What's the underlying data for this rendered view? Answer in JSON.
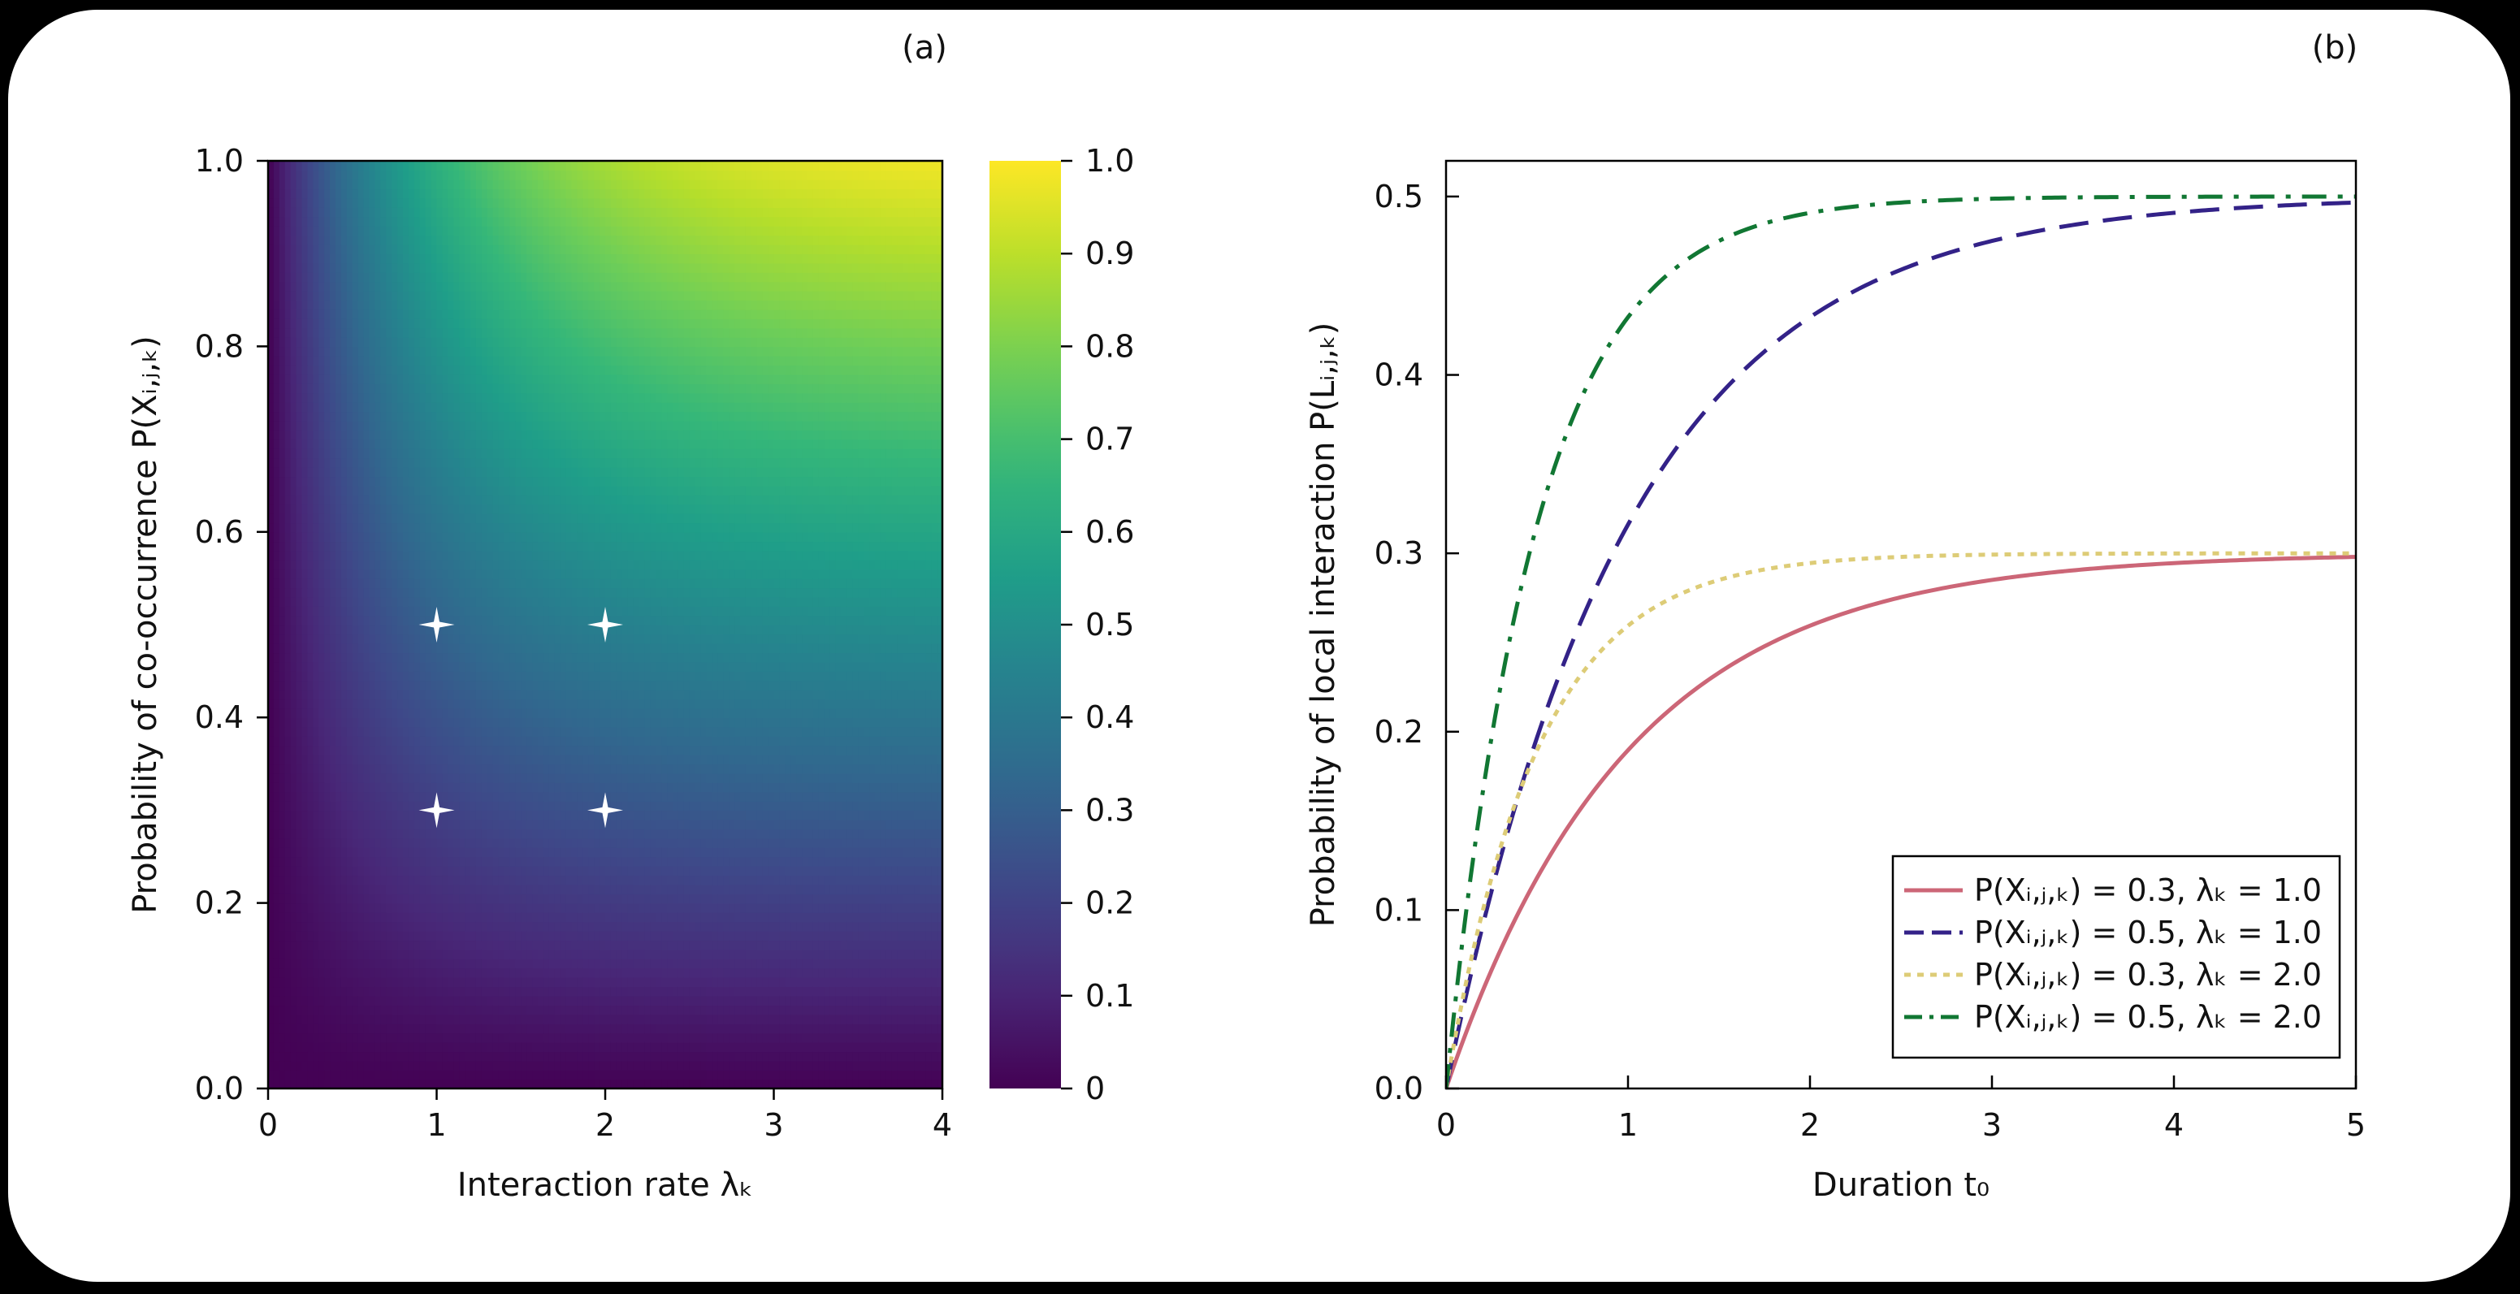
{
  "chart_data": [
    {
      "type": "heatmap",
      "panel_label": "(a)",
      "xlabel": "Interaction rate λₖ",
      "ylabel": "Probability of co-occurrence P(Xᵢ,ⱼ,ₖ)",
      "x_ticks": [
        "0",
        "1",
        "2",
        "3",
        "4"
      ],
      "y_ticks": [
        "0.0",
        "0.2",
        "0.4",
        "0.6",
        "0.8",
        "1.0"
      ],
      "xlim": [
        0,
        4
      ],
      "ylim": [
        0,
        1
      ],
      "z_function": "P(X) * (1 - exp(-lambda))",
      "colormap": "viridis",
      "colorbar": {
        "range": [
          0,
          1
        ],
        "ticks": [
          "0",
          "0.1",
          "0.2",
          "0.3",
          "0.4",
          "0.5",
          "0.6",
          "0.7",
          "0.8",
          "0.9",
          "1.0"
        ]
      },
      "markers": [
        {
          "x": 1,
          "y": 0.5
        },
        {
          "x": 2,
          "y": 0.5
        },
        {
          "x": 1,
          "y": 0.3
        },
        {
          "x": 2,
          "y": 0.3
        }
      ],
      "marker_color": "#ffffff"
    },
    {
      "type": "line",
      "panel_label": "(b)",
      "xlabel": "Duration t₀",
      "ylabel": "Probability of local interaction P(Lᵢ,ⱼ,ₖ)",
      "x_ticks": [
        "0",
        "1",
        "2",
        "3",
        "4",
        "5"
      ],
      "y_ticks": [
        "0.0",
        "0.1",
        "0.2",
        "0.3",
        "0.4",
        "0.5"
      ],
      "xlim": [
        0,
        5
      ],
      "ylim": [
        0,
        0.52
      ],
      "legend_position": "bottom-right",
      "series": [
        {
          "name": "P(Xᵢ,ⱼ,ₖ) = 0.3, λₖ = 1.0",
          "p": 0.3,
          "lambda": 1.0,
          "color": "#cc6677",
          "dash": "solid"
        },
        {
          "name": "P(Xᵢ,ⱼ,ₖ) = 0.5, λₖ = 1.0",
          "p": 0.5,
          "lambda": 1.0,
          "color": "#332288",
          "dash": "dashed"
        },
        {
          "name": "P(Xᵢ,ⱼ,ₖ) = 0.3, λₖ = 2.0",
          "p": 0.3,
          "lambda": 2.0,
          "color": "#ddcc77",
          "dash": "dotted"
        },
        {
          "name": "P(Xᵢ,ⱼ,ₖ) = 0.5, λₖ = 2.0",
          "p": 0.5,
          "lambda": 2.0,
          "color": "#117733",
          "dash": "dashdot"
        }
      ]
    }
  ]
}
